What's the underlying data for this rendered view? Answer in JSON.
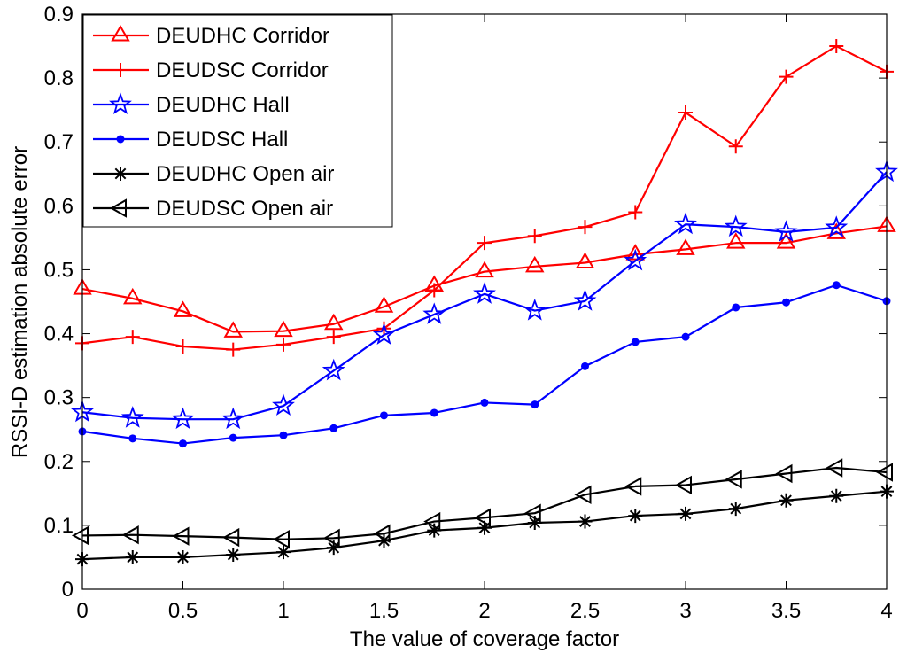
{
  "chart_data": {
    "type": "line",
    "title": "",
    "xlabel": "The value of coverage factor",
    "ylabel": "RSSI-D estimation absolute error",
    "xlim": [
      0,
      4
    ],
    "ylim": [
      0,
      0.9
    ],
    "x_ticks": [
      "0",
      "0.5",
      "1",
      "1.5",
      "2",
      "2.5",
      "3",
      "3.5",
      "4"
    ],
    "y_ticks": [
      "0",
      "0.1",
      "0.2",
      "0.3",
      "0.4",
      "0.5",
      "0.6",
      "0.7",
      "0.8",
      "0.9"
    ],
    "grid": false,
    "legend_position": "top-left",
    "x": [
      0,
      0.25,
      0.5,
      0.75,
      1,
      1.25,
      1.5,
      1.75,
      2,
      2.25,
      2.5,
      2.75,
      3,
      3.25,
      3.5,
      3.75,
      4
    ],
    "series": [
      {
        "name": "DEUDHC Corridor",
        "color": "#ff0000",
        "marker": "triangle-up",
        "values": [
          0.47,
          0.455,
          0.435,
          0.403,
          0.404,
          0.415,
          0.442,
          0.475,
          0.497,
          0.505,
          0.511,
          0.524,
          0.532,
          0.542,
          0.542,
          0.557,
          0.568
        ]
      },
      {
        "name": "DEUDSC Corridor",
        "color": "#ff0000",
        "marker": "plus",
        "values": [
          0.385,
          0.395,
          0.38,
          0.375,
          0.383,
          0.395,
          0.408,
          0.468,
          0.542,
          0.553,
          0.567,
          0.59,
          0.746,
          0.693,
          0.802,
          0.85,
          0.81
        ]
      },
      {
        "name": "DEUDHC Hall",
        "color": "#0000ff",
        "marker": "star",
        "values": [
          0.277,
          0.268,
          0.266,
          0.266,
          0.287,
          0.342,
          0.398,
          0.43,
          0.462,
          0.436,
          0.451,
          0.514,
          0.571,
          0.567,
          0.559,
          0.566,
          0.653
        ]
      },
      {
        "name": "DEUDSC Hall",
        "color": "#0000ff",
        "marker": "dot",
        "values": [
          0.247,
          0.236,
          0.228,
          0.237,
          0.241,
          0.252,
          0.272,
          0.276,
          0.292,
          0.289,
          0.349,
          0.387,
          0.395,
          0.441,
          0.449,
          0.476,
          0.451
        ]
      },
      {
        "name": "DEUDHC Open air",
        "color": "#000000",
        "marker": "asterisk",
        "values": [
          0.047,
          0.05,
          0.05,
          0.054,
          0.058,
          0.065,
          0.076,
          0.092,
          0.096,
          0.104,
          0.106,
          0.115,
          0.118,
          0.126,
          0.139,
          0.146,
          0.153
        ]
      },
      {
        "name": "DEUDSC Open air",
        "color": "#000000",
        "marker": "triangle-left",
        "values": [
          0.084,
          0.085,
          0.083,
          0.081,
          0.078,
          0.08,
          0.087,
          0.106,
          0.112,
          0.119,
          0.148,
          0.161,
          0.163,
          0.172,
          0.181,
          0.19,
          0.183
        ]
      }
    ]
  }
}
